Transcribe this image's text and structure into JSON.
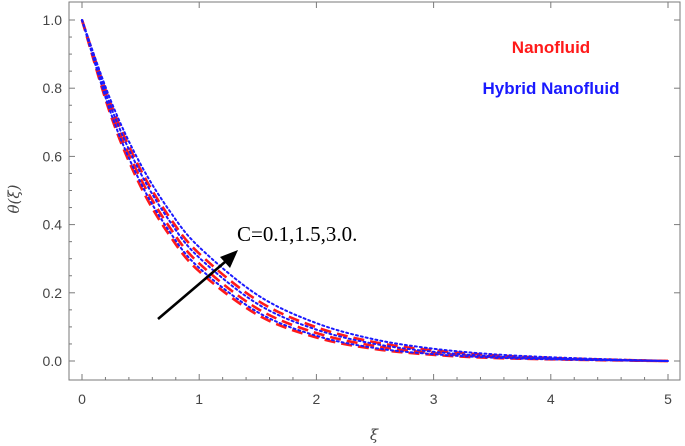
{
  "chart_data": {
    "type": "line",
    "xlabel": "ξ",
    "ylabel": "θ(ξ)",
    "xlim": [
      0,
      5
    ],
    "ylim": [
      0,
      1.0
    ],
    "x_ticks": [
      "0",
      "1",
      "2",
      "3",
      "4",
      "5"
    ],
    "y_ticks": [
      "0.0",
      "0.2",
      "0.4",
      "0.6",
      "0.8",
      "1.0"
    ],
    "grid": false,
    "legend": {
      "placement": "top-right",
      "entries": [
        {
          "label": "Nanofluid",
          "color": "#ff1a1a"
        },
        {
          "label": "Hybrid Nanofluid",
          "color": "#1a1aff"
        }
      ]
    },
    "annotation": {
      "text": "C=0.1,1.5,3.0.",
      "arrow_direction": "increasing C"
    },
    "x": [
      0,
      0.25,
      0.5,
      0.75,
      1.0,
      1.5,
      2.0,
      2.5,
      3.0,
      3.5,
      4.0,
      4.5,
      5.0
    ],
    "series": [
      {
        "group": "Nanofluid",
        "color": "#ff1a1a",
        "style": "dashed",
        "values": [
          1.0,
          0.716,
          0.512,
          0.367,
          0.263,
          0.135,
          0.069,
          0.035,
          0.018,
          0.009,
          0.005,
          0.002,
          0.0
        ]
      },
      {
        "group": "Nanofluid",
        "color": "#ff1a1a",
        "style": "dashed",
        "values": [
          1.0,
          0.731,
          0.535,
          0.391,
          0.286,
          0.153,
          0.082,
          0.044,
          0.023,
          0.012,
          0.006,
          0.003,
          0.0
        ]
      },
      {
        "group": "Nanofluid",
        "color": "#ff1a1a",
        "style": "dashed",
        "values": [
          1.0,
          0.749,
          0.561,
          0.42,
          0.315,
          0.177,
          0.099,
          0.055,
          0.031,
          0.017,
          0.009,
          0.004,
          0.0
        ]
      },
      {
        "group": "Hybrid Nanofluid",
        "color": "#1a1aff",
        "style": "dotted",
        "values": [
          1.0,
          0.723,
          0.523,
          0.378,
          0.273,
          0.143,
          0.074,
          0.038,
          0.02,
          0.01,
          0.005,
          0.002,
          0.0
        ]
      },
      {
        "group": "Hybrid Nanofluid",
        "color": "#1a1aff",
        "style": "dotted",
        "values": [
          1.0,
          0.742,
          0.551,
          0.409,
          0.303,
          0.167,
          0.092,
          0.05,
          0.027,
          0.014,
          0.007,
          0.003,
          0.0
        ]
      },
      {
        "group": "Hybrid Nanofluid",
        "color": "#1a1aff",
        "style": "dotted",
        "values": [
          1.0,
          0.76,
          0.577,
          0.439,
          0.334,
          0.193,
          0.111,
          0.063,
          0.036,
          0.02,
          0.011,
          0.005,
          0.0
        ]
      }
    ]
  }
}
